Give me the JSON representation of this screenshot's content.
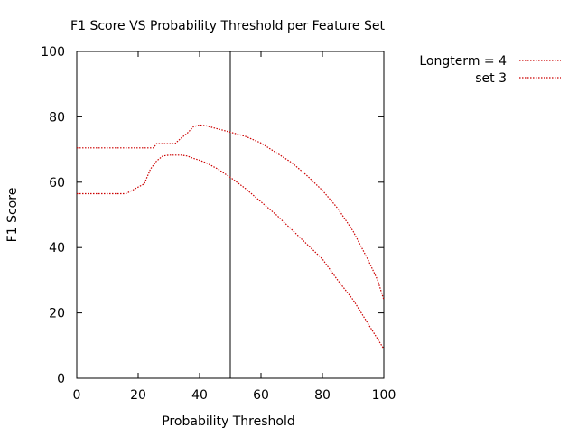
{
  "chart_data": {
    "type": "line",
    "title": "F1 Score VS Probability Threshold per Feature Set",
    "xlabel": "Probability Threshold",
    "ylabel": "F1 Score",
    "xlim": [
      0,
      100
    ],
    "ylim": [
      0,
      100
    ],
    "xticks": [
      0,
      20,
      40,
      60,
      80,
      100
    ],
    "yticks": [
      0,
      20,
      40,
      60,
      80,
      100
    ],
    "grid": false,
    "legend_position": "outside-top-right",
    "line_style": "dotted",
    "reference_line": {
      "x": 50,
      "orientation": "vertical"
    },
    "series": [
      {
        "name": "Longterm = 4",
        "color": "#cc0000",
        "x": [
          0,
          5,
          10,
          15,
          20,
          25,
          26,
          28,
          30,
          32,
          34,
          36,
          38,
          40,
          42,
          44,
          46,
          48,
          50,
          55,
          60,
          65,
          70,
          75,
          80,
          85,
          90,
          95,
          98,
          100
        ],
        "y": [
          70.5,
          70.5,
          70.5,
          70.5,
          70.5,
          70.5,
          71.8,
          71.8,
          71.8,
          71.8,
          73.5,
          75.0,
          77.0,
          77.5,
          77.3,
          76.8,
          76.3,
          75.8,
          75.3,
          74.0,
          72.0,
          69.0,
          66.0,
          62.0,
          57.5,
          52.0,
          45.0,
          36.0,
          30.0,
          24.0
        ]
      },
      {
        "name": "set 3",
        "color": "#cc0000",
        "x": [
          0,
          5,
          10,
          15,
          16,
          18,
          20,
          22,
          24,
          26,
          28,
          30,
          32,
          34,
          36,
          38,
          40,
          42,
          44,
          46,
          48,
          50,
          55,
          60,
          65,
          70,
          75,
          80,
          85,
          90,
          95,
          100
        ],
        "y": [
          56.5,
          56.5,
          56.5,
          56.5,
          56.5,
          57.5,
          58.5,
          59.5,
          64.0,
          66.5,
          68.0,
          68.3,
          68.3,
          68.3,
          68.0,
          67.3,
          66.7,
          66.0,
          65.0,
          64.0,
          62.7,
          61.5,
          58.0,
          54.0,
          50.0,
          45.5,
          41.0,
          36.5,
          30.0,
          24.0,
          16.5,
          9.0
        ]
      }
    ]
  }
}
